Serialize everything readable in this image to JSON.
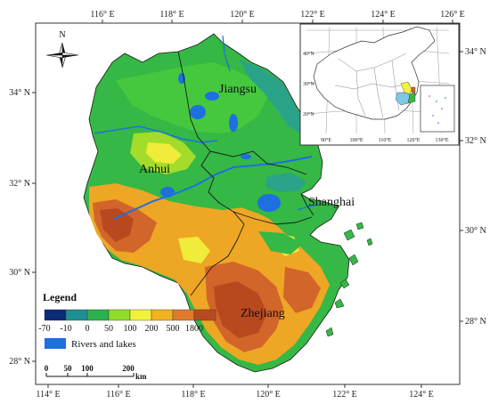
{
  "lon_labels_top": [
    "116° E",
    "118° E",
    "120° E",
    "122° E",
    "124° E",
    "126° E"
  ],
  "lon_labels_bottom": [
    "114° E",
    "116° E",
    "118° E",
    "120° E",
    "122° E",
    "124° E"
  ],
  "lat_labels_left": [
    "34° N",
    "32° N",
    "30° N",
    "28° N"
  ],
  "lat_labels_right": [
    "34° N",
    "32° N",
    "30° N",
    "28° N"
  ],
  "north_label": "N",
  "regions": {
    "jiangsu": "Jiangsu",
    "anhui": "Anhui",
    "shanghai": "Shanghai",
    "zhejiang": "Zhejiang"
  },
  "legend": {
    "title": "Legend",
    "elevation_ticks": [
      "-70",
      "-10",
      "0",
      "50",
      "100",
      "200",
      "500",
      "1800"
    ],
    "elevation_colors": [
      "#0b2a78",
      "#1e8f94",
      "#29b34a",
      "#8fdc2a",
      "#f2f23a",
      "#f2b21e",
      "#e07a2a",
      "#b84a22"
    ],
    "water_label": "Rivers and lakes",
    "water_color": "#1e6fe0"
  },
  "scale_bar": {
    "ticks": [
      "0",
      "50",
      "100",
      "200"
    ],
    "unit": "km"
  },
  "inset": {
    "lon_labels": [
      "90°E",
      "100°E",
      "110°E",
      "120°E",
      "130°E"
    ],
    "lat_labels": [
      "40°N",
      "30°N",
      "20°N"
    ]
  }
}
